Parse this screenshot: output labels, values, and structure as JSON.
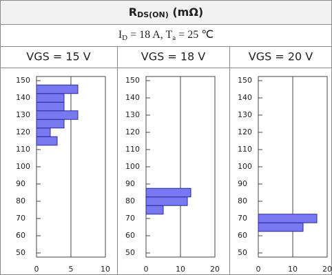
{
  "table": {
    "title": {
      "main": "R",
      "sub": "DS(ON)",
      "rest": " (mΩ)"
    },
    "condition": {
      "p1": "I",
      "s1": "D",
      "p2": " = 18 A, T",
      "s2": "a",
      "p3": " = 25 ℃"
    }
  },
  "chart_data": [
    {
      "type": "histogram",
      "orientation": "horizontal",
      "title": "VGS = 15 V",
      "bins": [
        112.5,
        117.5,
        122.5,
        127.5,
        132.5,
        137.5,
        142.5,
        147.5
      ],
      "values": [
        3,
        2,
        4,
        6,
        4,
        4,
        6
      ],
      "color": "#7878f0",
      "xlim": [
        0,
        10
      ],
      "xticks": [
        0,
        5,
        10
      ],
      "ylim": [
        50,
        150
      ],
      "yticks": [
        50,
        60,
        70,
        80,
        90,
        100,
        110,
        120,
        130,
        140,
        150
      ],
      "grid": true
    },
    {
      "type": "histogram",
      "orientation": "horizontal",
      "title": "VGS = 18 V",
      "bins": [
        72.5,
        77.5,
        82.5,
        87.5
      ],
      "values": [
        5,
        12,
        13
      ],
      "color": "#7878f0",
      "xlim": [
        0,
        20
      ],
      "xticks": [
        0,
        10,
        20
      ],
      "ylim": [
        50,
        150
      ],
      "yticks": [
        50,
        60,
        70,
        80,
        90,
        100,
        110,
        120,
        130,
        140,
        150
      ],
      "grid": true
    },
    {
      "type": "histogram",
      "orientation": "horizontal",
      "title": "VGS = 20 V",
      "bins": [
        62.5,
        67.5,
        72.5
      ],
      "values": [
        13,
        17
      ],
      "color": "#7878f0",
      "xlim": [
        0,
        20
      ],
      "xticks": [
        0,
        10,
        20
      ],
      "ylim": [
        50,
        150
      ],
      "yticks": [
        50,
        60,
        70,
        80,
        90,
        100,
        110,
        120,
        130,
        140,
        150
      ],
      "grid": true
    }
  ]
}
